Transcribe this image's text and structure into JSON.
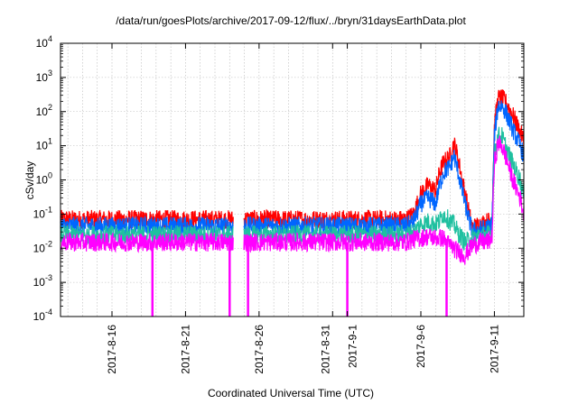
{
  "chart_data": {
    "type": "line",
    "title": "/data/run/goesPlots/archive/2017-09-12/flux/../bryn/31daysEarthData.plot",
    "xlabel": "Coordinated Universal Time (UTC)",
    "ylabel": "cSv/day",
    "yscale": "log",
    "ylim": [
      0.0001,
      10000
    ],
    "xlim": [
      "2017-08-12T12:00",
      "2017-09-13T00:00"
    ],
    "grid": true,
    "y_ticks": [
      {
        "base": "10",
        "exp": "-4",
        "value": 0.0001
      },
      {
        "base": "10",
        "exp": "-3",
        "value": 0.001
      },
      {
        "base": "10",
        "exp": "-2",
        "value": 0.01
      },
      {
        "base": "10",
        "exp": "-1",
        "value": 0.1
      },
      {
        "base": "10",
        "exp": "0",
        "value": 1
      },
      {
        "base": "10",
        "exp": "1",
        "value": 10
      },
      {
        "base": "10",
        "exp": "2",
        "value": 100
      },
      {
        "base": "10",
        "exp": "3",
        "value": 1000
      },
      {
        "base": "10",
        "exp": "4",
        "value": 10000
      }
    ],
    "x_ticks": [
      {
        "label": "2017-8-16",
        "x": "2017-08-16"
      },
      {
        "label": "2017-8-21",
        "x": "2017-08-21"
      },
      {
        "label": "2017-8-26",
        "x": "2017-08-26"
      },
      {
        "label": "2017-8-31",
        "x": "2017-08-31"
      },
      {
        "label": "2017-9-1",
        "x": "2017-09-01"
      },
      {
        "label": "2017-9-6",
        "x": "2017-09-06"
      },
      {
        "label": "2017-9-11",
        "x": "2017-09-11"
      }
    ],
    "data_gaps": [
      {
        "start": "2017-08-24T06:00",
        "end": "2017-08-24T23:00"
      }
    ],
    "dropouts": [
      "2017-08-18T18:00",
      "2017-08-24T00:00",
      "2017-08-25T06:00",
      "2017-09-01T00:00",
      "2017-09-07T18:00"
    ],
    "series": [
      {
        "color": "#ff0000",
        "x": [
          "2017-08-12T12:00",
          "2017-08-24T06:00",
          "2017-08-24T23:00",
          "2017-09-05T00:00",
          "2017-09-05T12:00",
          "2017-09-06T00:00",
          "2017-09-06T12:00",
          "2017-09-07T00:00",
          "2017-09-07T06:00",
          "2017-09-07T12:00",
          "2017-09-07T18:00",
          "2017-09-08T00:00",
          "2017-09-08T06:00",
          "2017-09-08T12:00",
          "2017-09-09T00:00",
          "2017-09-09T12:00",
          "2017-09-10T00:00",
          "2017-09-10T12:00",
          "2017-09-10T20:00",
          "2017-09-11T00:00",
          "2017-09-11T06:00",
          "2017-09-11T12:00",
          "2017-09-11T18:00",
          "2017-09-12T06:00",
          "2017-09-12T18:00",
          "2017-09-13T00:00"
        ],
        "values": [
          0.07,
          0.07,
          0.07,
          0.07,
          0.1,
          0.4,
          0.7,
          0.5,
          1.5,
          3,
          4,
          5,
          12,
          5,
          0.4,
          0.04,
          0.05,
          0.06,
          0.07,
          40,
          250,
          250,
          200,
          80,
          25,
          15
        ]
      },
      {
        "color": "#0066ff",
        "x": [
          "2017-08-12T12:00",
          "2017-08-24T06:00",
          "2017-08-24T23:00",
          "2017-09-05T00:00",
          "2017-09-05T12:00",
          "2017-09-06T00:00",
          "2017-09-06T12:00",
          "2017-09-07T00:00",
          "2017-09-07T06:00",
          "2017-09-07T12:00",
          "2017-09-07T18:00",
          "2017-09-08T00:00",
          "2017-09-08T06:00",
          "2017-09-08T12:00",
          "2017-09-09T00:00",
          "2017-09-09T12:00",
          "2017-09-10T00:00",
          "2017-09-10T12:00",
          "2017-09-10T20:00",
          "2017-09-11T00:00",
          "2017-09-11T06:00",
          "2017-09-11T12:00",
          "2017-09-11T18:00",
          "2017-09-12T06:00",
          "2017-09-12T18:00",
          "2017-09-13T00:00"
        ],
        "values": [
          0.045,
          0.045,
          0.045,
          0.045,
          0.06,
          0.2,
          0.3,
          0.2,
          0.6,
          1.5,
          2,
          2.5,
          5,
          2,
          0.2,
          0.03,
          0.035,
          0.04,
          0.05,
          20,
          150,
          150,
          100,
          30,
          10,
          5
        ]
      },
      {
        "color": "#20c0a0",
        "x": [
          "2017-08-12T12:00",
          "2017-08-24T06:00",
          "2017-08-24T23:00",
          "2017-09-05T00:00",
          "2017-09-05T12:00",
          "2017-09-06T00:00",
          "2017-09-06T12:00",
          "2017-09-07T00:00",
          "2017-09-07T06:00",
          "2017-09-07T12:00",
          "2017-09-07T18:00",
          "2017-09-08T00:00",
          "2017-09-08T06:00",
          "2017-09-08T12:00",
          "2017-09-09T00:00",
          "2017-09-09T12:00",
          "2017-09-10T00:00",
          "2017-09-10T12:00",
          "2017-09-10T20:00",
          "2017-09-11T00:00",
          "2017-09-11T06:00",
          "2017-09-11T12:00",
          "2017-09-11T18:00",
          "2017-09-12T06:00",
          "2017-09-12T18:00",
          "2017-09-13T00:00"
        ],
        "values": [
          0.025,
          0.025,
          0.025,
          0.025,
          0.03,
          0.05,
          0.06,
          0.05,
          0.06,
          0.1,
          0.08,
          0.06,
          0.05,
          0.03,
          0.015,
          0.02,
          0.025,
          0.025,
          0.03,
          5,
          20,
          20,
          10,
          3,
          1,
          0.3
        ]
      },
      {
        "color": "#ff00ff",
        "x": [
          "2017-08-12T12:00",
          "2017-08-24T06:00",
          "2017-08-24T23:00",
          "2017-09-05T00:00",
          "2017-09-05T12:00",
          "2017-09-06T00:00",
          "2017-09-06T12:00",
          "2017-09-07T00:00",
          "2017-09-07T06:00",
          "2017-09-07T12:00",
          "2017-09-07T18:00",
          "2017-09-08T00:00",
          "2017-09-08T06:00",
          "2017-09-08T12:00",
          "2017-09-09T00:00",
          "2017-09-09T12:00",
          "2017-09-10T00:00",
          "2017-09-10T12:00",
          "2017-09-10T20:00",
          "2017-09-11T00:00",
          "2017-09-11T06:00",
          "2017-09-11T12:00",
          "2017-09-11T18:00",
          "2017-09-12T06:00",
          "2017-09-12T18:00",
          "2017-09-13T00:00"
        ],
        "values": [
          0.015,
          0.015,
          0.015,
          0.015,
          0.018,
          0.02,
          0.022,
          0.02,
          0.02,
          0.02,
          0.015,
          0.012,
          0.01,
          0.008,
          0.006,
          0.012,
          0.015,
          0.015,
          0.02,
          3,
          12,
          10,
          5,
          1,
          0.3,
          0.1
        ]
      }
    ]
  }
}
